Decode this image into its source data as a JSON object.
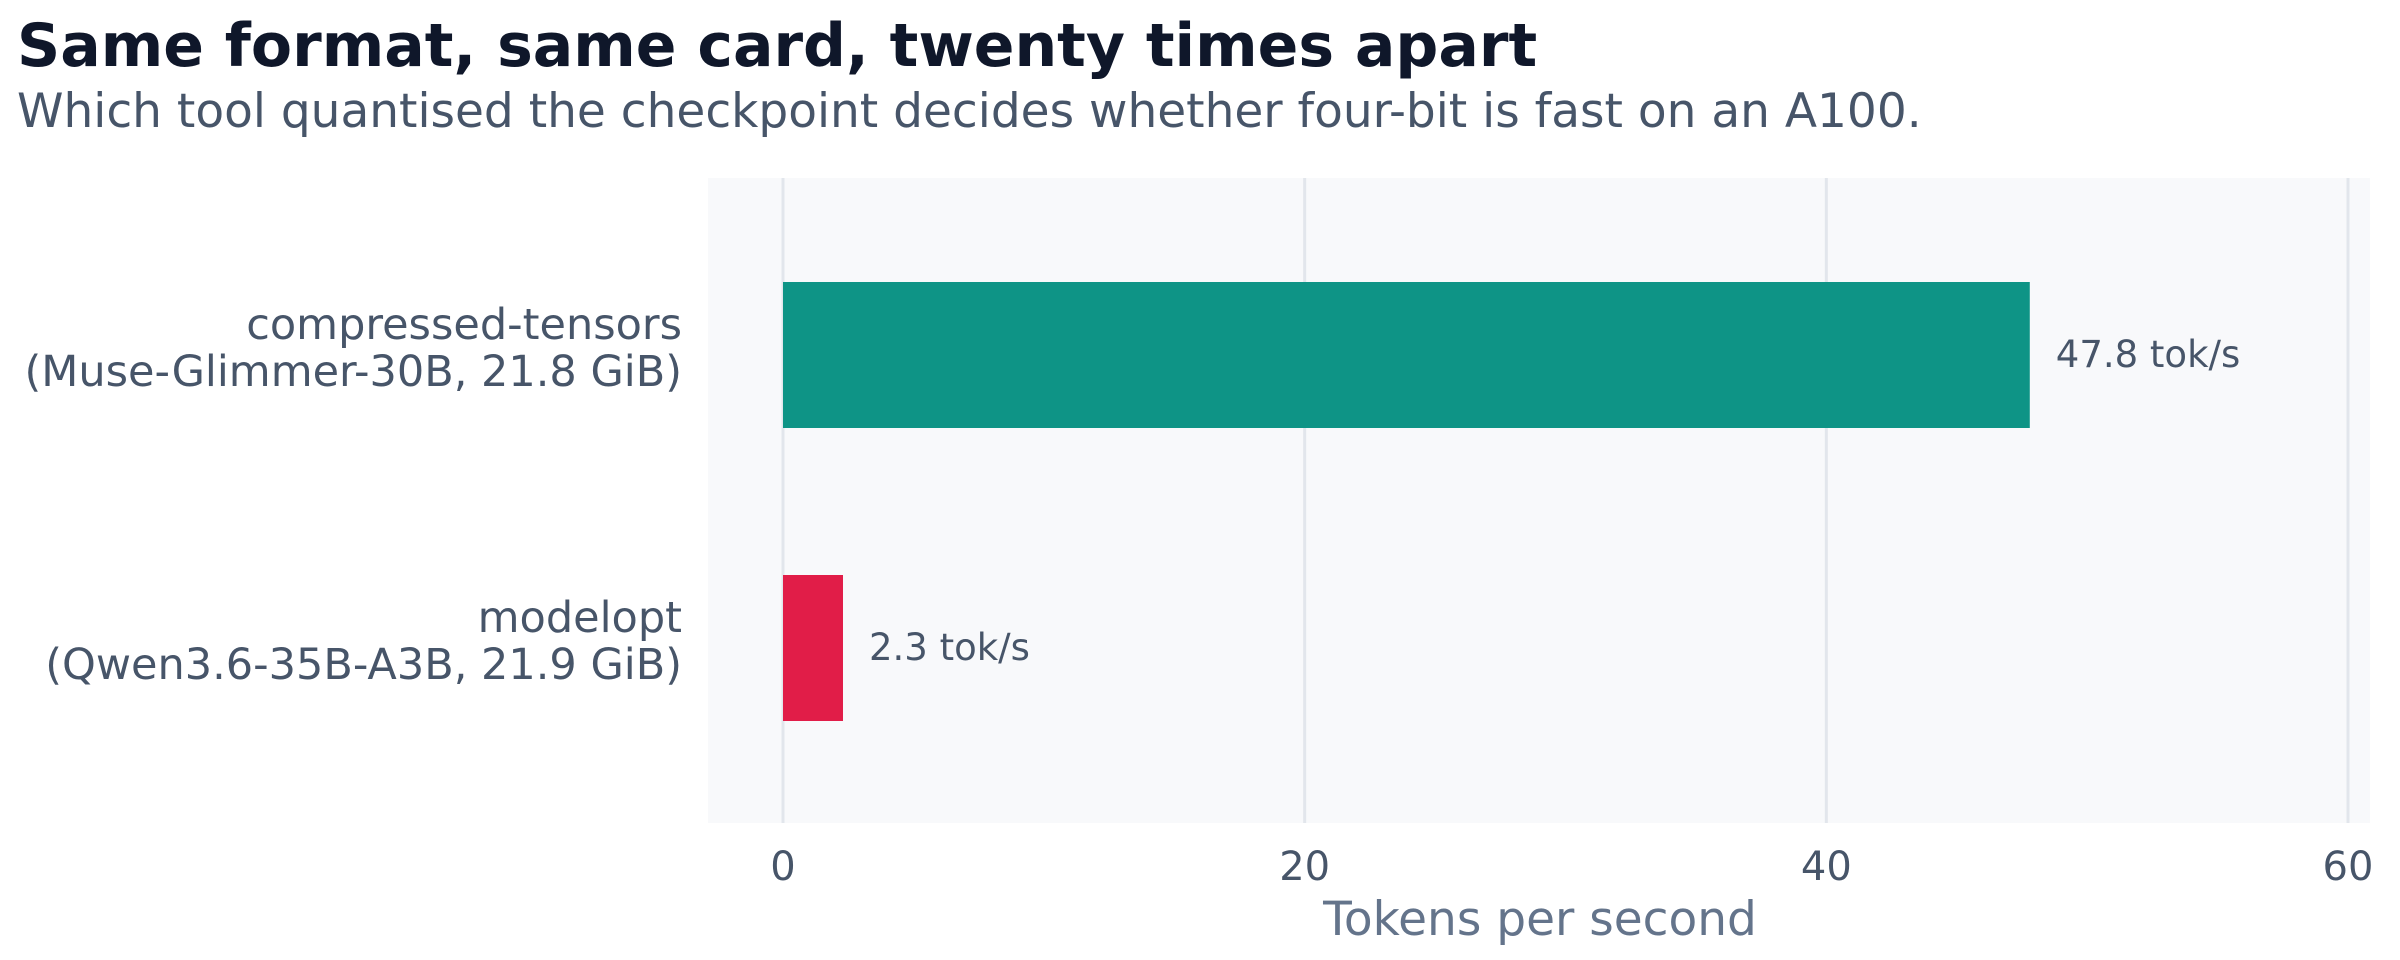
{
  "chart_data": {
    "type": "bar",
    "orientation": "horizontal",
    "title": "Same format, same card, twenty times apart",
    "subtitle": "Which tool quantised the checkpoint decides whether four-bit is fast on an A100.",
    "xlabel": "Tokens per second",
    "ylabel": "",
    "xlim": [
      0,
      60
    ],
    "xticks": [
      "0",
      "20",
      "40",
      "60"
    ],
    "grid": true,
    "legend": false,
    "categories": [
      [
        "compressed-tensors",
        "(Muse-Glimmer-30B, 21.8 GiB)"
      ],
      [
        "modelopt",
        "(Qwen3.6-35B-A3B, 21.9 GiB)"
      ]
    ],
    "values": [
      47.8,
      2.3
    ],
    "value_labels": [
      "47.8 tok/s",
      "2.3 tok/s"
    ],
    "colors": {
      "bars": [
        "#0e9486",
        "#e11d48"
      ],
      "plot_background": "#f8f9fb",
      "gridline": "#e2e6ec",
      "title": "#0f172a",
      "subtitle": "#475569",
      "tick_label": "#475569",
      "axis_label": "#64748b",
      "value_label": "#475569"
    }
  }
}
